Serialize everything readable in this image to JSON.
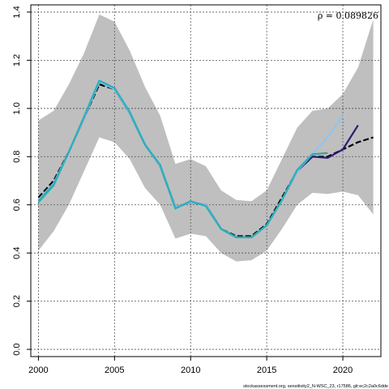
{
  "chart_data": {
    "type": "line",
    "title": "",
    "xlabel": "",
    "ylabel": "",
    "xlim": [
      1999.5,
      2022.5
    ],
    "ylim": [
      -0.03,
      1.43
    ],
    "x_ticks": [
      2000,
      2005,
      2010,
      2015,
      2020
    ],
    "x_tick_labels": [
      "2000",
      "2005",
      "2010",
      "2015",
      "2020"
    ],
    "y_ticks": [
      0.0,
      0.2,
      0.4,
      0.6,
      0.8,
      1.0,
      1.2,
      1.4
    ],
    "y_tick_labels": [
      "0.0",
      "0.2",
      "0.4",
      "0.6",
      "0.8",
      "1.0",
      "1.2",
      "1.4"
    ],
    "grid": true,
    "annotation": "ρ = 0.089826",
    "footer": "stockassessment.org, sensitivity2_N-WSC_23, r17586, git:ec2c2a0c6dde",
    "band": {
      "x": [
        2000,
        2001,
        2002,
        2003,
        2004,
        2005,
        2006,
        2007,
        2008,
        2009,
        2010,
        2011,
        2012,
        2013,
        2014,
        2015,
        2016,
        2017,
        2018,
        2019,
        2020,
        2021,
        2022
      ],
      "lower": [
        0.41,
        0.49,
        0.6,
        0.74,
        0.88,
        0.86,
        0.79,
        0.67,
        0.6,
        0.46,
        0.48,
        0.47,
        0.4,
        0.365,
        0.37,
        0.41,
        0.5,
        0.6,
        0.65,
        0.645,
        0.655,
        0.64,
        0.56
      ],
      "upper": [
        0.95,
        0.99,
        1.1,
        1.23,
        1.39,
        1.36,
        1.24,
        1.09,
        0.97,
        0.77,
        0.79,
        0.76,
        0.66,
        0.62,
        0.615,
        0.66,
        0.79,
        0.92,
        0.99,
        1.0,
        1.06,
        1.17,
        1.37
      ]
    },
    "series": [
      {
        "color": "#000000",
        "dashed": true,
        "x": [
          2000,
          2001,
          2002,
          2003,
          2004,
          2005,
          2006,
          2007,
          2008,
          2009,
          2010,
          2011,
          2012,
          2013,
          2014,
          2015,
          2016,
          2017,
          2018,
          2019,
          2020,
          2021,
          2022
        ],
        "values": [
          0.63,
          0.7,
          0.82,
          0.96,
          1.1,
          1.08,
          0.98,
          0.85,
          0.76,
          0.59,
          0.61,
          0.6,
          0.5,
          0.47,
          0.47,
          0.52,
          0.63,
          0.74,
          0.8,
          0.8,
          0.83,
          0.86,
          0.88
        ]
      },
      {
        "color": "#2a1a78",
        "dashed": false,
        "x": [
          2000,
          2001,
          2002,
          2003,
          2004,
          2005,
          2006,
          2007,
          2008,
          2009,
          2010,
          2011,
          2012,
          2013,
          2014,
          2015,
          2016,
          2017,
          2018,
          2019,
          2020,
          2021
        ],
        "values": [
          0.62,
          0.69,
          0.82,
          0.96,
          1.11,
          1.08,
          0.98,
          0.85,
          0.76,
          0.59,
          0.61,
          0.6,
          0.5,
          0.465,
          0.465,
          0.515,
          0.62,
          0.74,
          0.8,
          0.795,
          0.83,
          0.93
        ]
      },
      {
        "color": "#8ec6ee",
        "dashed": false,
        "x": [
          2000,
          2001,
          2002,
          2003,
          2004,
          2005,
          2006,
          2007,
          2008,
          2009,
          2010,
          2011,
          2012,
          2013,
          2014,
          2015,
          2016,
          2017,
          2018,
          2019,
          2020
        ],
        "values": [
          0.62,
          0.69,
          0.82,
          0.96,
          1.11,
          1.08,
          0.98,
          0.85,
          0.76,
          0.59,
          0.61,
          0.6,
          0.5,
          0.465,
          0.465,
          0.515,
          0.62,
          0.74,
          0.81,
          0.88,
          0.97
        ]
      },
      {
        "color": "#3aa38a",
        "dashed": false,
        "x": [
          2000,
          2001,
          2002,
          2003,
          2004,
          2005,
          2006,
          2007,
          2008,
          2009,
          2010,
          2011,
          2012,
          2013,
          2014,
          2015,
          2016,
          2017,
          2018,
          2019
        ],
        "values": [
          0.615,
          0.685,
          0.82,
          0.965,
          1.115,
          1.085,
          0.985,
          0.85,
          0.765,
          0.585,
          0.615,
          0.595,
          0.5,
          0.465,
          0.465,
          0.515,
          0.62,
          0.745,
          0.81,
          0.815
        ]
      },
      {
        "color": "#2ab0c0",
        "dashed": false,
        "x": [
          2000,
          2001,
          2002,
          2003,
          2004,
          2005,
          2006,
          2007,
          2008,
          2009,
          2010,
          2011,
          2012,
          2013,
          2014,
          2015,
          2016,
          2017,
          2018
        ],
        "values": [
          0.61,
          0.68,
          0.82,
          0.965,
          1.115,
          1.085,
          0.985,
          0.85,
          0.765,
          0.585,
          0.615,
          0.595,
          0.5,
          0.465,
          0.465,
          0.515,
          0.62,
          0.745,
          0.81
        ]
      }
    ]
  }
}
